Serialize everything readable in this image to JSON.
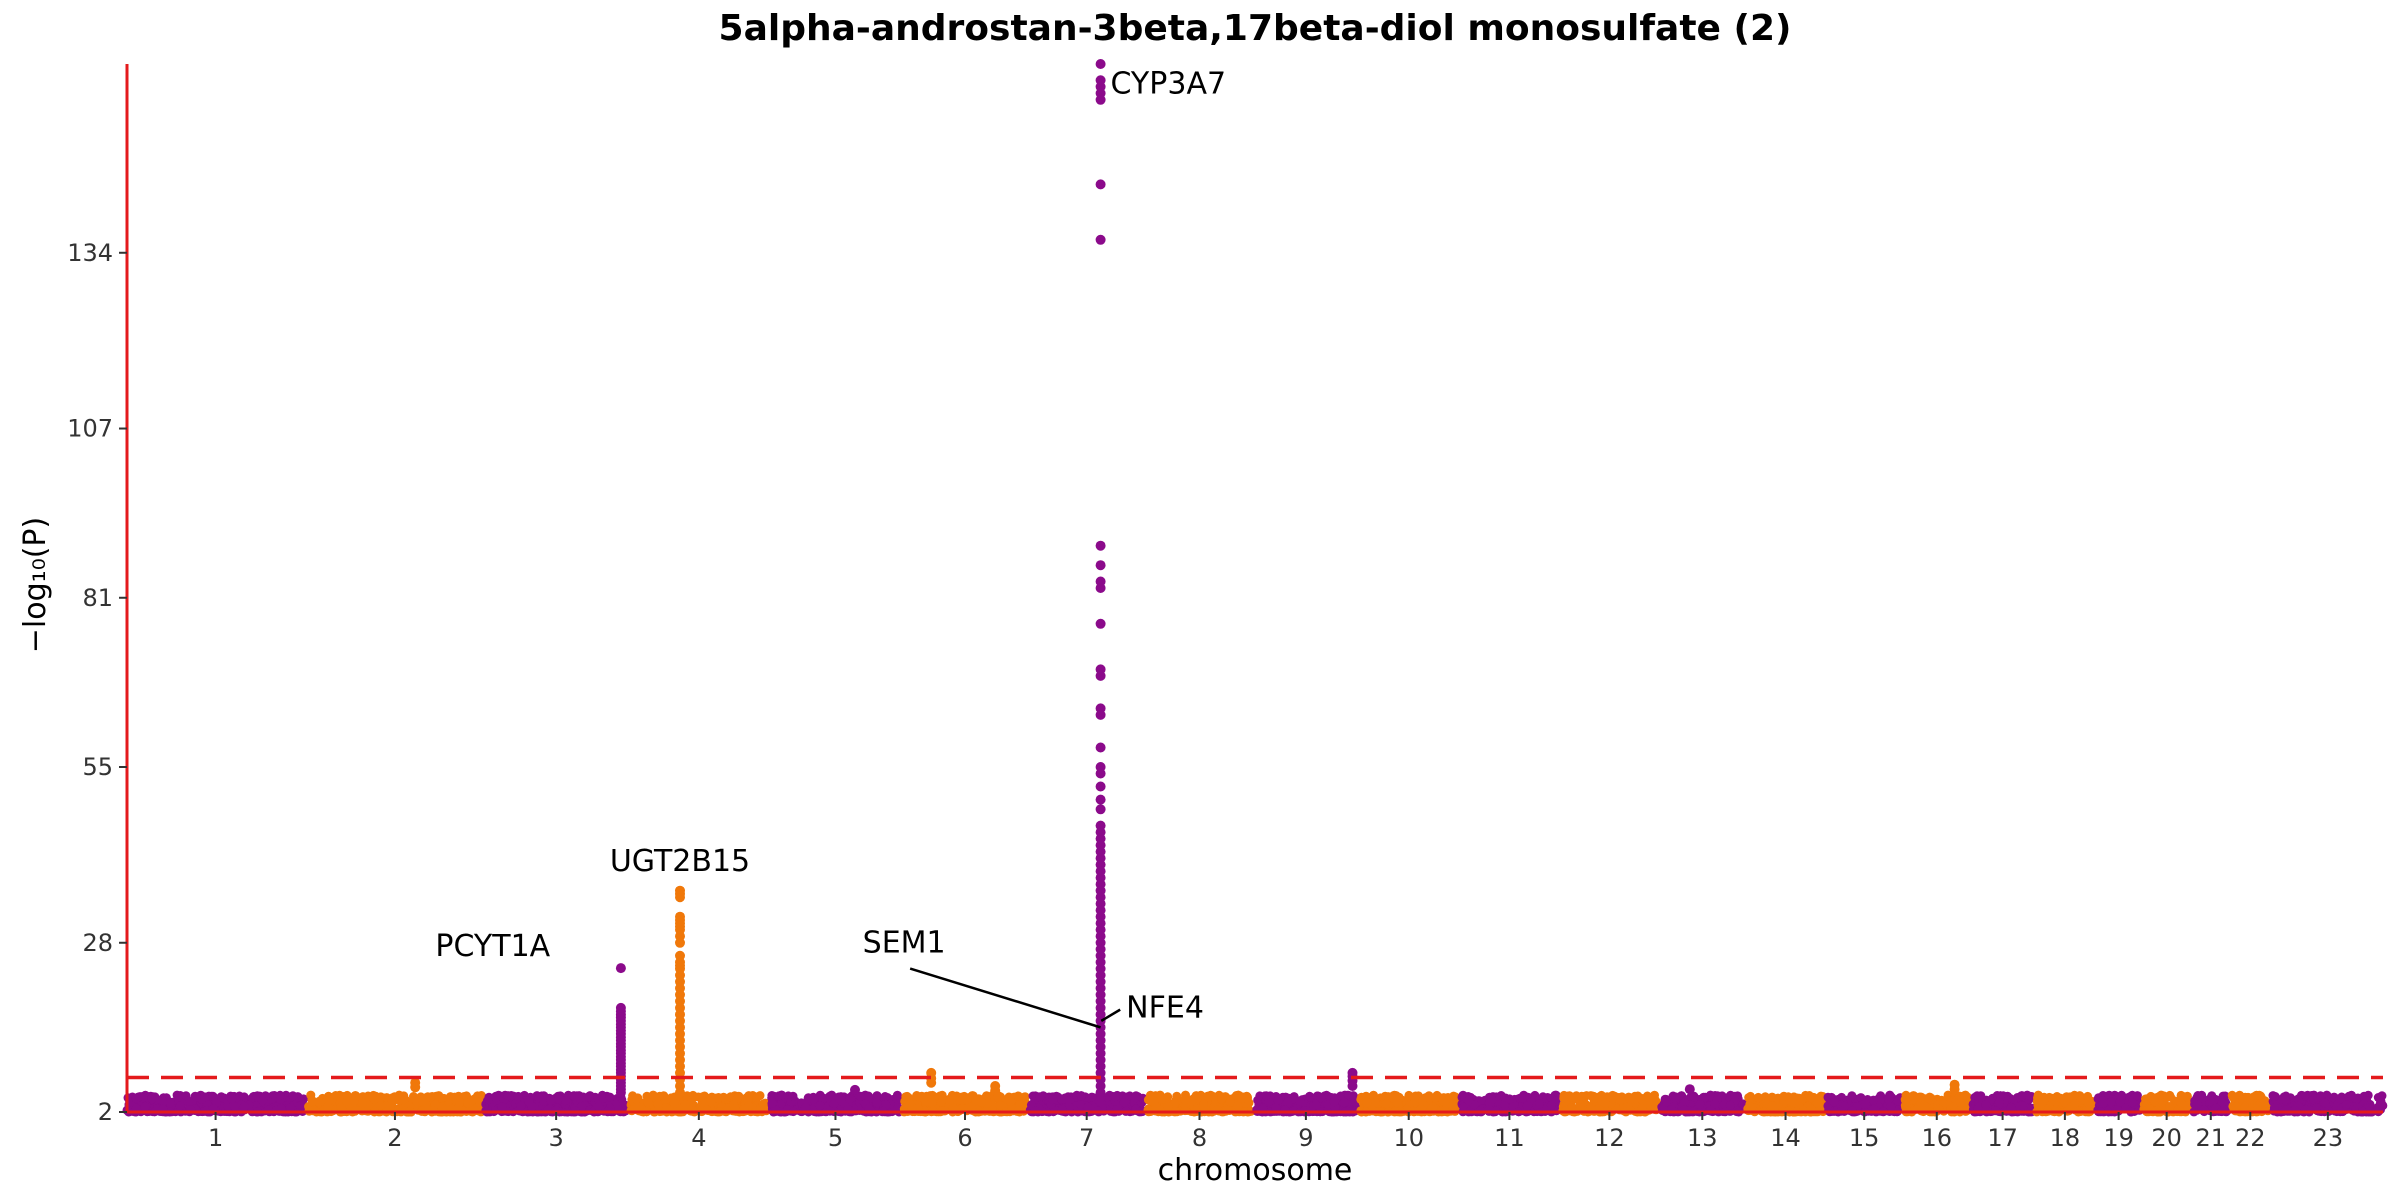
{
  "chart_data": {
    "type": "scatter",
    "title": "5alpha-androstan-3beta,17beta-diol monosulfate (2)",
    "xlabel": "chromosome",
    "ylabel": "−log₁₀(P)",
    "ylim": [
      2,
      163
    ],
    "y_ticks": [
      2,
      28,
      55,
      81,
      107,
      134
    ],
    "threshold": 7.3,
    "grid": false,
    "colors": {
      "odd": "#8B0A8B",
      "even": "#F0780A",
      "axis": "#E41A1C",
      "threshold": "#E41A1C"
    },
    "chromosomes": [
      {
        "label": "1",
        "length": 249
      },
      {
        "label": "2",
        "length": 243
      },
      {
        "label": "3",
        "length": 198
      },
      {
        "label": "4",
        "length": 191
      },
      {
        "label": "5",
        "length": 181
      },
      {
        "label": "6",
        "length": 171
      },
      {
        "label": "7",
        "length": 159
      },
      {
        "label": "8",
        "length": 146
      },
      {
        "label": "9",
        "length": 141
      },
      {
        "label": "10",
        "length": 136
      },
      {
        "label": "11",
        "length": 135
      },
      {
        "label": "12",
        "length": 134
      },
      {
        "label": "13",
        "length": 115
      },
      {
        "label": "14",
        "length": 107
      },
      {
        "label": "15",
        "length": 102
      },
      {
        "label": "16",
        "length": 90
      },
      {
        "label": "17",
        "length": 83
      },
      {
        "label": "18",
        "length": 80
      },
      {
        "label": "19",
        "length": 59
      },
      {
        "label": "20",
        "length": 64
      },
      {
        "label": "21",
        "length": 48
      },
      {
        "label": "22",
        "length": 51
      },
      {
        "label": "23",
        "length": 155
      }
    ],
    "peaks": [
      {
        "chrom": "3",
        "pos": 190,
        "values": [
          24.1,
          18.0,
          17.5,
          17.0,
          16.5,
          16.0,
          15.5,
          15.0,
          14.5,
          14.0,
          13.5,
          13.0,
          12.5,
          12.0,
          11.5,
          11.0,
          10.5,
          10.0,
          9.5,
          9.0,
          8.5,
          8.0,
          7.5,
          7.0,
          6.5,
          6.0,
          5.5,
          5.0
        ]
      },
      {
        "chrom": "4",
        "pos": 69,
        "values": [
          36.0,
          35.5,
          35.0,
          32.0,
          31.5,
          31.0,
          30.5,
          30.0,
          29.0,
          28.0,
          26.0,
          25.0,
          24.5,
          24.0,
          23.0,
          22.0,
          21.0,
          20.0,
          19.0,
          18.0,
          17.0,
          16.0,
          15.0,
          14.0,
          13.0,
          12.0,
          11.0,
          10.0,
          9.0,
          8.0,
          7.0,
          6.0,
          5.0
        ]
      },
      {
        "chrom": "6",
        "pos": 38,
        "values": [
          8.0,
          7.2,
          6.5
        ]
      },
      {
        "chrom": "7",
        "pos": 99,
        "values": [
          163.0,
          160.5,
          159.5,
          158.5,
          157.5,
          144.5,
          136.0,
          89.0,
          86.0,
          83.5,
          82.5,
          77.0,
          70.0,
          69.0,
          64.0,
          63.0,
          58.0,
          55.0,
          54.0,
          52.0,
          50.0,
          48.5,
          46.0,
          45.0,
          44.0,
          43.0,
          42.0,
          41.0,
          40.0,
          39.0,
          38.0,
          37.0,
          36.0,
          35.0,
          34.0,
          33.0,
          32.0,
          31.0,
          30.0,
          29.0,
          28.0,
          27.0,
          26.0,
          25.0,
          24.0,
          23.0,
          22.0,
          21.0,
          20.0,
          19.0,
          18.0,
          17.0,
          16.0,
          15.0,
          14.0,
          13.0,
          12.0,
          11.0,
          10.0,
          9.0,
          8.0,
          7.0,
          6.0,
          5.0
        ]
      },
      {
        "chrom": "9",
        "pos": 136,
        "values": [
          8.0,
          7.5,
          6.8,
          6.0
        ]
      },
      {
        "chrom": "2",
        "pos": 150,
        "values": [
          6.5,
          5.8
        ]
      },
      {
        "chrom": "16",
        "pos": 70,
        "values": [
          6.2,
          5.5
        ]
      },
      {
        "chrom": "6",
        "pos": 128,
        "values": [
          6.0,
          5.3
        ]
      },
      {
        "chrom": "5",
        "pos": 118,
        "values": [
          5.4
        ]
      },
      {
        "chrom": "13",
        "pos": 40,
        "values": [
          5.5
        ]
      }
    ],
    "annotations": [
      {
        "label": "CYP3A7",
        "chrom": "7",
        "pos": 99,
        "y": 158.5,
        "text_chrom": "7",
        "text_pos": 113,
        "text_y": 158.5,
        "line": false,
        "anchor": "start"
      },
      {
        "label": "UGT2B15",
        "chrom": "4",
        "pos": 69,
        "y": 36.0,
        "text_chrom": "4",
        "text_pos": 69,
        "text_y": 39.0,
        "line": false,
        "anchor": "middle"
      },
      {
        "label": "PCYT1A",
        "chrom": "3",
        "pos": 190,
        "y": 24.1,
        "text_chrom": "3",
        "text_pos": 10,
        "text_y": 26.0,
        "line": false,
        "anchor": "middle"
      },
      {
        "label": "SEM1",
        "chrom": "7",
        "pos": 99,
        "y": 15.0,
        "text_chrom": "6",
        "text_pos": 0,
        "text_y": 26.5,
        "line": true,
        "anchor": "middle"
      },
      {
        "label": "NFE4",
        "chrom": "7",
        "pos": 100,
        "y": 16.0,
        "text_chrom": "7",
        "text_pos": 135,
        "text_y": 16.5,
        "line": true,
        "anchor": "start"
      }
    ]
  }
}
